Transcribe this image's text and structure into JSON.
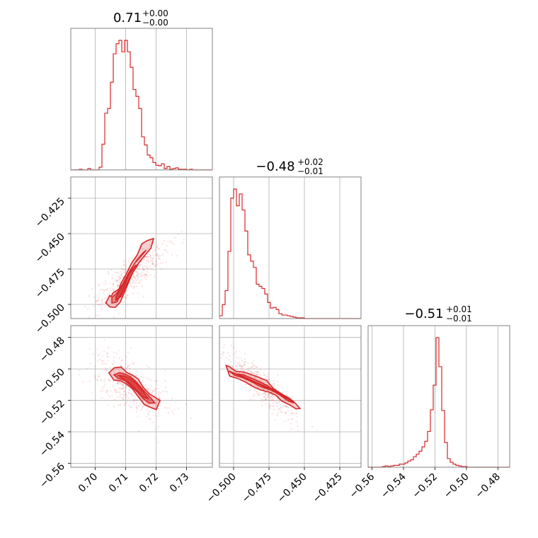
{
  "chart_data": {
    "type": "corner",
    "color": "#d62728",
    "grid": true,
    "titles": [
      {
        "value": "0.71",
        "plus": "+0.00",
        "minus": "−0.00"
      },
      {
        "value": "−0.48",
        "plus": "+0.02",
        "minus": "−0.01"
      },
      {
        "value": "−0.51",
        "plus": "+0.01",
        "minus": "−0.01"
      }
    ],
    "params": [
      {
        "range": [
          0.692,
          0.7385
        ],
        "ticks": [
          0.7,
          0.71,
          0.72,
          0.73
        ],
        "tick_labels": [
          "0.70",
          "0.71",
          "0.72",
          "0.73"
        ]
      },
      {
        "range": [
          -0.51,
          -0.41
        ],
        "ticks": [
          -0.5,
          -0.475,
          -0.45,
          -0.425
        ],
        "tick_labels": [
          "−0.500",
          "−0.475",
          "−0.450",
          "−0.425"
        ]
      },
      {
        "range": [
          -0.5625,
          -0.4725
        ],
        "ticks": [
          -0.56,
          -0.54,
          -0.52,
          -0.5,
          -0.48
        ],
        "tick_labels": [
          "−0.56",
          "−0.54",
          "−0.52",
          "−0.50",
          "−0.48"
        ]
      }
    ],
    "histograms": [
      {
        "param": 0,
        "counts": [
          0,
          0,
          0,
          1,
          0,
          0,
          2,
          0,
          0,
          0,
          4,
          38,
          84,
          91,
          130,
          172,
          187,
          192,
          175,
          192,
          175,
          152,
          119,
          109,
          91,
          49,
          37,
          22,
          18,
          11,
          7,
          6,
          9,
          2,
          5,
          1,
          2,
          3,
          1,
          1,
          1,
          0,
          1,
          0,
          0,
          0,
          0,
          0,
          0,
          0
        ]
      },
      {
        "param": 1,
        "counts": [
          4,
          20,
          40,
          96,
          172,
          185,
          161,
          178,
          155,
          125,
          91,
          82,
          73,
          49,
          46,
          43,
          35,
          23,
          15,
          16,
          13,
          7,
          5,
          5,
          4,
          3,
          2,
          1,
          1,
          1,
          0,
          0,
          0,
          0,
          0,
          0,
          0,
          0,
          0,
          0,
          0,
          0,
          0,
          0,
          0,
          0,
          0,
          0,
          0,
          0
        ]
      },
      {
        "param": 2,
        "counts": [
          0,
          0,
          0,
          0,
          0,
          1,
          2,
          1,
          2,
          3,
          3,
          5,
          5,
          7,
          10,
          12,
          17,
          21,
          26,
          33,
          42,
          58,
          93,
          133,
          210,
          163,
          92,
          40,
          14,
          8,
          5,
          3,
          2,
          1,
          1,
          0,
          0,
          0,
          0,
          0,
          0,
          0,
          0,
          0,
          0,
          0,
          0,
          0,
          0,
          0
        ]
      }
    ],
    "pair_contours": [
      {
        "x_param": 0,
        "y_param": 1,
        "levels": [
          {
            "x": [
              0.7048,
              0.7035,
              0.7049,
              0.7066,
              0.7082,
              0.7102,
              0.7122,
              0.7142,
              0.7162,
              0.7183,
              0.7192,
              0.7171,
              0.7154,
              0.7138,
              0.712,
              0.7102,
              0.7085,
              0.7078,
              0.7059,
              0.7052,
              0.7048
            ],
            "y": [
              -0.4937,
              -0.499,
              -0.5018,
              -0.5021,
              -0.4985,
              -0.4885,
              -0.4781,
              -0.4711,
              -0.4657,
              -0.4603,
              -0.4535,
              -0.4549,
              -0.4571,
              -0.4651,
              -0.4707,
              -0.4786,
              -0.4851,
              -0.4892,
              -0.4919,
              -0.4945,
              -0.4937
            ]
          },
          {
            "x": [
              0.7055,
              0.7055,
              0.7072,
              0.7092,
              0.7112,
              0.7129,
              0.7145,
              0.7168,
              0.7158,
              0.7136,
              0.7112,
              0.7091,
              0.7071,
              0.7055
            ],
            "y": [
              -0.4951,
              -0.499,
              -0.4983,
              -0.4889,
              -0.4782,
              -0.4711,
              -0.4673,
              -0.4617,
              -0.4634,
              -0.469,
              -0.4771,
              -0.4854,
              -0.4921,
              -0.4951
            ]
          },
          {
            "x": [
              0.7068,
              0.7068,
              0.7085,
              0.7103,
              0.7122,
              0.714,
              0.7133,
              0.7113,
              0.7094,
              0.7078,
              0.7068
            ],
            "y": [
              -0.4948,
              -0.4971,
              -0.4944,
              -0.486,
              -0.478,
              -0.4722,
              -0.4723,
              -0.4782,
              -0.4851,
              -0.4913,
              -0.4948
            ]
          }
        ]
      },
      {
        "x_param": 0,
        "y_param": 2,
        "levels": [
          {
            "x": [
              0.7045,
              0.7063,
              0.7085,
              0.7105,
              0.7123,
              0.7141,
              0.7158,
              0.7179,
              0.7199,
              0.7213,
              0.7201,
              0.7183,
              0.7162,
              0.7141,
              0.7122,
              0.7102,
              0.7082,
              0.7062,
              0.7045
            ],
            "y": [
              -0.5025,
              -0.4993,
              -0.4988,
              -0.5024,
              -0.504,
              -0.5064,
              -0.5118,
              -0.5161,
              -0.5183,
              -0.5201,
              -0.5258,
              -0.5246,
              -0.5227,
              -0.5175,
              -0.5126,
              -0.5095,
              -0.5075,
              -0.5072,
              -0.5025
            ]
          },
          {
            "x": [
              0.7062,
              0.7079,
              0.7099,
              0.7117,
              0.7136,
              0.7157,
              0.7178,
              0.7196,
              0.7178,
              0.7158,
              0.7139,
              0.7118,
              0.7098,
              0.7075,
              0.7062
            ],
            "y": [
              -0.5038,
              -0.5024,
              -0.5034,
              -0.5051,
              -0.5084,
              -0.5133,
              -0.5175,
              -0.5216,
              -0.5218,
              -0.5189,
              -0.5148,
              -0.511,
              -0.5074,
              -0.506,
              -0.5038
            ]
          },
          {
            "x": [
              0.7077,
              0.7097,
              0.7115,
              0.7136,
              0.7158,
              0.7175,
              0.7154,
              0.7134,
              0.7114,
              0.7092,
              0.7077
            ],
            "y": [
              -0.5042,
              -0.5046,
              -0.506,
              -0.5094,
              -0.5146,
              -0.5191,
              -0.5176,
              -0.5131,
              -0.5092,
              -0.5064,
              -0.5042
            ]
          }
        ]
      },
      {
        "x_param": 1,
        "y_param": 2,
        "levels": [
          {
            "x": [
              -0.5053,
              -0.5028,
              -0.4973,
              -0.4916,
              -0.486,
              -0.4809,
              -0.4753,
              -0.4703,
              -0.4661,
              -0.4608,
              -0.4559,
              -0.4531,
              -0.4571,
              -0.4609,
              -0.4663,
              -0.472,
              -0.4767,
              -0.4823,
              -0.4879,
              -0.4927,
              -0.4982,
              -0.503,
              -0.5053
            ],
            "y": [
              -0.4978,
              -0.5046,
              -0.506,
              -0.5084,
              -0.5114,
              -0.5134,
              -0.5147,
              -0.5166,
              -0.5204,
              -0.5227,
              -0.5254,
              -0.5252,
              -0.5212,
              -0.5185,
              -0.5159,
              -0.5124,
              -0.5074,
              -0.5053,
              -0.5035,
              -0.502,
              -0.5016,
              -0.4986,
              -0.4978
            ]
          },
          {
            "x": [
              -0.5034,
              -0.4989,
              -0.4933,
              -0.4872,
              -0.4817,
              -0.476,
              -0.4704,
              -0.4662,
              -0.4614,
              -0.4574,
              -0.4609,
              -0.4661,
              -0.4716,
              -0.477,
              -0.4825,
              -0.4881,
              -0.4934,
              -0.4988,
              -0.5034
            ],
            "y": [
              -0.5013,
              -0.5042,
              -0.5057,
              -0.5082,
              -0.511,
              -0.5127,
              -0.5143,
              -0.5173,
              -0.5204,
              -0.5217,
              -0.5194,
              -0.5167,
              -0.5134,
              -0.5102,
              -0.5078,
              -0.5056,
              -0.5037,
              -0.5031,
              -0.5013
            ]
          },
          {
            "x": [
              -0.5,
              -0.4945,
              -0.4891,
              -0.4835,
              -0.4773,
              -0.472,
              -0.466,
              -0.4616,
              -0.466,
              -0.4717,
              -0.4773,
              -0.4834,
              -0.489,
              -0.4944,
              -0.5
            ],
            "y": [
              -0.5026,
              -0.5044,
              -0.5065,
              -0.5088,
              -0.5112,
              -0.5129,
              -0.5159,
              -0.519,
              -0.5172,
              -0.5144,
              -0.5117,
              -0.5092,
              -0.5068,
              -0.5048,
              -0.5026
            ]
          }
        ]
      }
    ]
  }
}
